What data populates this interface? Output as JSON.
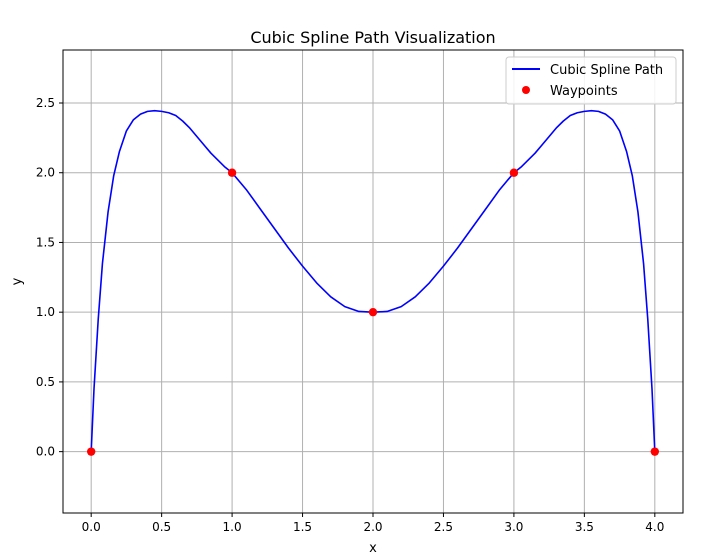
{
  "chart_data": {
    "type": "line",
    "title": "Cubic Spline Path Visualization",
    "xlabel": "x",
    "ylabel": "y",
    "xlim": [
      -0.2,
      4.2
    ],
    "ylim": [
      -0.44,
      2.88
    ],
    "xticks": [
      0.0,
      0.5,
      1.0,
      1.5,
      2.0,
      2.5,
      3.0,
      3.5,
      4.0
    ],
    "xtick_labels": [
      "0.0",
      "0.5",
      "1.0",
      "1.5",
      "2.0",
      "2.5",
      "3.0",
      "3.5",
      "4.0"
    ],
    "yticks": [
      0.0,
      0.5,
      1.0,
      1.5,
      2.0,
      2.5
    ],
    "ytick_labels": [
      "0.0",
      "0.5",
      "1.0",
      "1.5",
      "2.0",
      "2.5"
    ],
    "grid": true,
    "legend_position": "top-right",
    "series": [
      {
        "name": "Cubic Spline Path",
        "kind": "line",
        "color": "#0000ff",
        "x": [
          0.0,
          0.02,
          0.05,
          0.08,
          0.12,
          0.16,
          0.2,
          0.25,
          0.3,
          0.35,
          0.4,
          0.45,
          0.5,
          0.55,
          0.6,
          0.65,
          0.7,
          0.75,
          0.8,
          0.85,
          0.9,
          0.95,
          1.0,
          1.1,
          1.2,
          1.3,
          1.4,
          1.5,
          1.6,
          1.7,
          1.8,
          1.9,
          2.0,
          2.1,
          2.2,
          2.3,
          2.4,
          2.5,
          2.6,
          2.7,
          2.8,
          2.9,
          3.0,
          3.05,
          3.1,
          3.15,
          3.2,
          3.25,
          3.3,
          3.35,
          3.4,
          3.45,
          3.5,
          3.55,
          3.6,
          3.65,
          3.7,
          3.75,
          3.8,
          3.84,
          3.88,
          3.92,
          3.95,
          3.98,
          4.0
        ],
        "y": [
          0.0,
          0.45,
          0.95,
          1.35,
          1.72,
          1.98,
          2.15,
          2.3,
          2.38,
          2.42,
          2.44,
          2.445,
          2.44,
          2.43,
          2.41,
          2.37,
          2.32,
          2.26,
          2.2,
          2.14,
          2.09,
          2.04,
          2.0,
          1.88,
          1.74,
          1.6,
          1.46,
          1.33,
          1.21,
          1.11,
          1.04,
          1.005,
          1.0,
          1.005,
          1.04,
          1.11,
          1.21,
          1.33,
          1.46,
          1.6,
          1.74,
          1.88,
          2.0,
          2.04,
          2.09,
          2.14,
          2.2,
          2.26,
          2.32,
          2.37,
          2.41,
          2.43,
          2.44,
          2.445,
          2.44,
          2.42,
          2.38,
          2.3,
          2.15,
          1.98,
          1.72,
          1.35,
          0.95,
          0.45,
          0.0
        ]
      },
      {
        "name": "Waypoints",
        "kind": "scatter",
        "color": "#ff0000",
        "x": [
          0,
          1,
          2,
          3,
          4
        ],
        "y": [
          0,
          2,
          1,
          2,
          0
        ]
      }
    ]
  }
}
